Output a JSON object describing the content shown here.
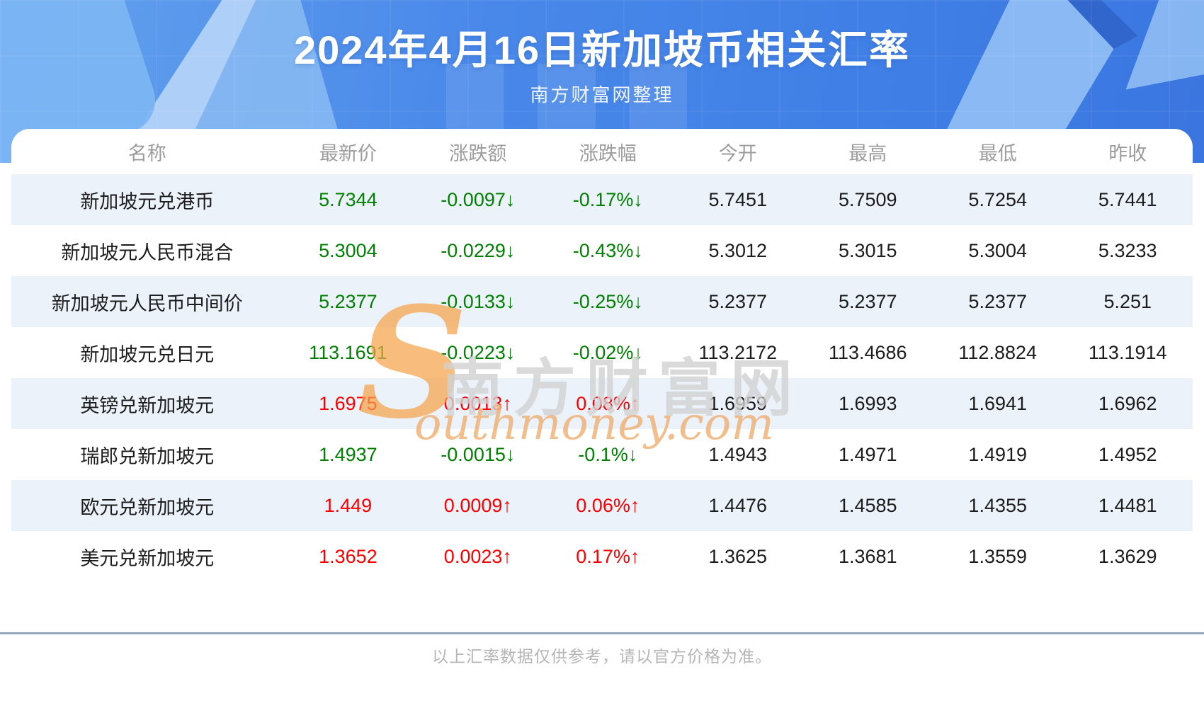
{
  "banner": {
    "title": "2024年4月16日新加坡币相关汇率",
    "subtitle": "南方财富网整理",
    "bg_color": "#4484e6"
  },
  "watermark": {
    "s": "S",
    "cn": "南方财富网",
    "en": "outhmoney.com"
  },
  "footer": {
    "disclaimer": "以上汇率数据仅供参考，请以官方价格为准。"
  },
  "colors": {
    "up": "#fb0000",
    "down": "#008000",
    "stripe": "#ecf2fa"
  },
  "table": {
    "headers": [
      "名称",
      "最新价",
      "涨跌额",
      "涨跌幅",
      "今开",
      "最高",
      "最低",
      "昨收"
    ],
    "rows": [
      {
        "name": "新加坡元兑港币",
        "latest": "5.7344",
        "change": "-0.0097↓",
        "change_pct": "-0.17%↓",
        "open": "5.7451",
        "high": "5.7509",
        "low": "5.7254",
        "prev_close": "5.7441",
        "trend": "down"
      },
      {
        "name": "新加坡元人民币混合",
        "latest": "5.3004",
        "change": "-0.0229↓",
        "change_pct": "-0.43%↓",
        "open": "5.3012",
        "high": "5.3015",
        "low": "5.3004",
        "prev_close": "5.3233",
        "trend": "down"
      },
      {
        "name": "新加坡元人民币中间价",
        "latest": "5.2377",
        "change": "-0.0133↓",
        "change_pct": "-0.25%↓",
        "open": "5.2377",
        "high": "5.2377",
        "low": "5.2377",
        "prev_close": "5.251",
        "trend": "down"
      },
      {
        "name": "新加坡元兑日元",
        "latest": "113.1691",
        "change": "-0.0223↓",
        "change_pct": "-0.02%↓",
        "open": "113.2172",
        "high": "113.4686",
        "low": "112.8824",
        "prev_close": "113.1914",
        "trend": "down"
      },
      {
        "name": "英镑兑新加坡元",
        "latest": "1.6975",
        "change": "0.0013↑",
        "change_pct": "0.08%↑",
        "open": "1.6959",
        "high": "1.6993",
        "low": "1.6941",
        "prev_close": "1.6962",
        "trend": "up"
      },
      {
        "name": "瑞郎兑新加坡元",
        "latest": "1.4937",
        "change": "-0.0015↓",
        "change_pct": "-0.1%↓",
        "open": "1.4943",
        "high": "1.4971",
        "low": "1.4919",
        "prev_close": "1.4952",
        "trend": "down"
      },
      {
        "name": "欧元兑新加坡元",
        "latest": "1.449",
        "change": "0.0009↑",
        "change_pct": "0.06%↑",
        "open": "1.4476",
        "high": "1.4585",
        "low": "1.4355",
        "prev_close": "1.4481",
        "trend": "up"
      },
      {
        "name": "美元兑新加坡元",
        "latest": "1.3652",
        "change": "0.0023↑",
        "change_pct": "0.17%↑",
        "open": "1.3625",
        "high": "1.3681",
        "low": "1.3559",
        "prev_close": "1.3629",
        "trend": "up"
      }
    ]
  },
  "chart_data": {
    "type": "table",
    "title": "2024年4月16日新加坡币相关汇率",
    "columns": [
      "名称",
      "最新价",
      "涨跌额",
      "涨跌幅",
      "今开",
      "最高",
      "最低",
      "昨收"
    ],
    "rows": [
      [
        "新加坡元兑港币",
        5.7344,
        -0.0097,
        "-0.17%",
        5.7451,
        5.7509,
        5.7254,
        5.7441
      ],
      [
        "新加坡元人民币混合",
        5.3004,
        -0.0229,
        "-0.43%",
        5.3012,
        5.3015,
        5.3004,
        5.3233
      ],
      [
        "新加坡元人民币中间价",
        5.2377,
        -0.0133,
        "-0.25%",
        5.2377,
        5.2377,
        5.2377,
        5.251
      ],
      [
        "新加坡元兑日元",
        113.1691,
        -0.0223,
        "-0.02%",
        113.2172,
        113.4686,
        112.8824,
        113.1914
      ],
      [
        "英镑兑新加坡元",
        1.6975,
        0.0013,
        "0.08%",
        1.6959,
        1.6993,
        1.6941,
        1.6962
      ],
      [
        "瑞郎兑新加坡元",
        1.4937,
        -0.0015,
        "-0.1%",
        1.4943,
        1.4971,
        1.4919,
        1.4952
      ],
      [
        "欧元兑新加坡元",
        1.449,
        0.0009,
        "0.06%",
        1.4476,
        1.4585,
        1.4355,
        1.4481
      ],
      [
        "美元兑新加坡元",
        1.3652,
        0.0023,
        "0.17%",
        1.3625,
        1.3681,
        1.3559,
        1.3629
      ]
    ]
  }
}
